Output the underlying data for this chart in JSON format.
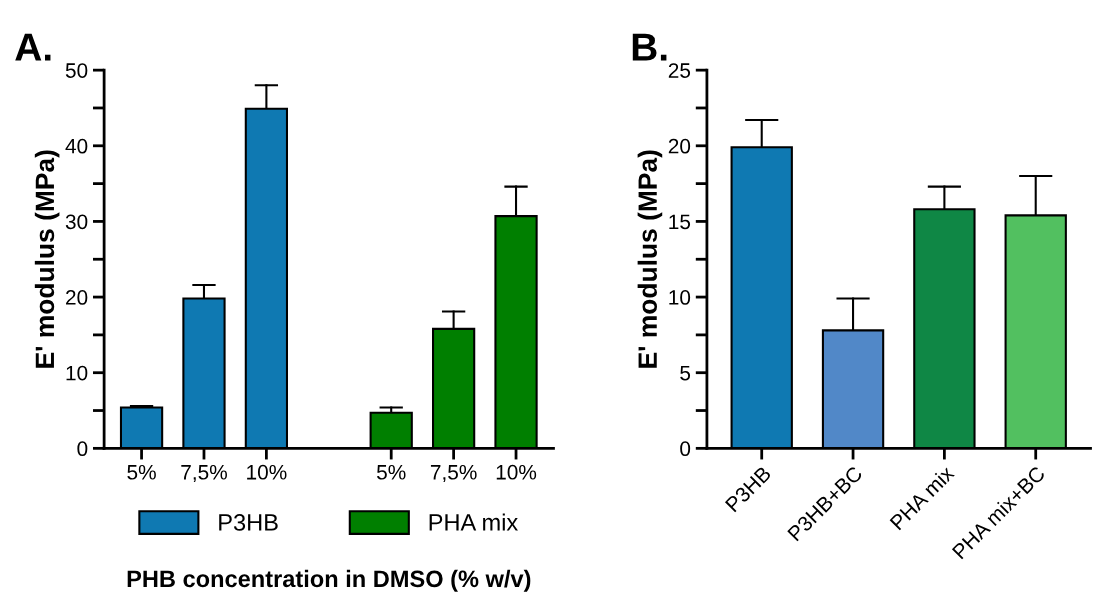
{
  "chart_data": [
    {
      "type": "bar",
      "title": "A.",
      "ylabel": "E' modulus (MPa)",
      "xlabel": "PHB concentration in DMSO (% w/v)",
      "categories": [
        "5%",
        "7,5%",
        "10%",
        null,
        "5%",
        "7,5%",
        "10%"
      ],
      "series": [
        {
          "name": "P3HB",
          "color": "#0f79b2",
          "values": [
            5.4,
            19.8,
            44.9,
            null,
            null,
            null,
            null
          ],
          "errors": [
            [
              5.4,
              5.6
            ],
            [
              19.8,
              21.6
            ],
            [
              44.9,
              48.0
            ],
            null,
            null,
            null,
            null
          ]
        },
        {
          "name": "PHA mix",
          "color": "#007f00",
          "values": [
            null,
            null,
            null,
            null,
            4.7,
            15.8,
            30.7
          ],
          "errors": [
            null,
            null,
            null,
            null,
            [
              4.7,
              5.4
            ],
            [
              15.8,
              18.1
            ],
            [
              30.7,
              34.6
            ]
          ]
        }
      ],
      "ylim": [
        0,
        50
      ],
      "yticks": [
        0,
        {
          "value": 5,
          "label": null
        },
        10,
        {
          "value": 15,
          "label": null
        },
        20,
        {
          "value": 25,
          "label": null
        },
        30,
        {
          "value": 35,
          "label": null
        },
        40,
        {
          "value": 45,
          "label": null
        },
        50
      ],
      "grid": false,
      "legend": "bottom"
    },
    {
      "type": "bar",
      "title": "B.",
      "ylabel": "E' modulus (MPa)",
      "categories": [
        "P3HB",
        "P3HB+BC",
        "PHA mix",
        "PHA mix+BC"
      ],
      "values": [
        19.9,
        7.8,
        15.8,
        15.4
      ],
      "colors": [
        "#0f79b2",
        "#5188c8",
        "#0f8745",
        "#52c060"
      ],
      "errors": [
        [
          19.9,
          21.7
        ],
        [
          7.8,
          9.9
        ],
        [
          15.8,
          17.3
        ],
        [
          15.4,
          18.0
        ]
      ],
      "ylim": [
        0,
        25
      ],
      "yticks": [
        0,
        {
          "value": 2.5,
          "label": null
        },
        5,
        {
          "value": 7.5,
          "label": null
        },
        10,
        {
          "value": 12.5,
          "label": null
        },
        15,
        {
          "value": 17.5,
          "label": null
        },
        20,
        {
          "value": 22.5,
          "label": null
        },
        25
      ],
      "grid": false,
      "legend": false
    }
  ]
}
